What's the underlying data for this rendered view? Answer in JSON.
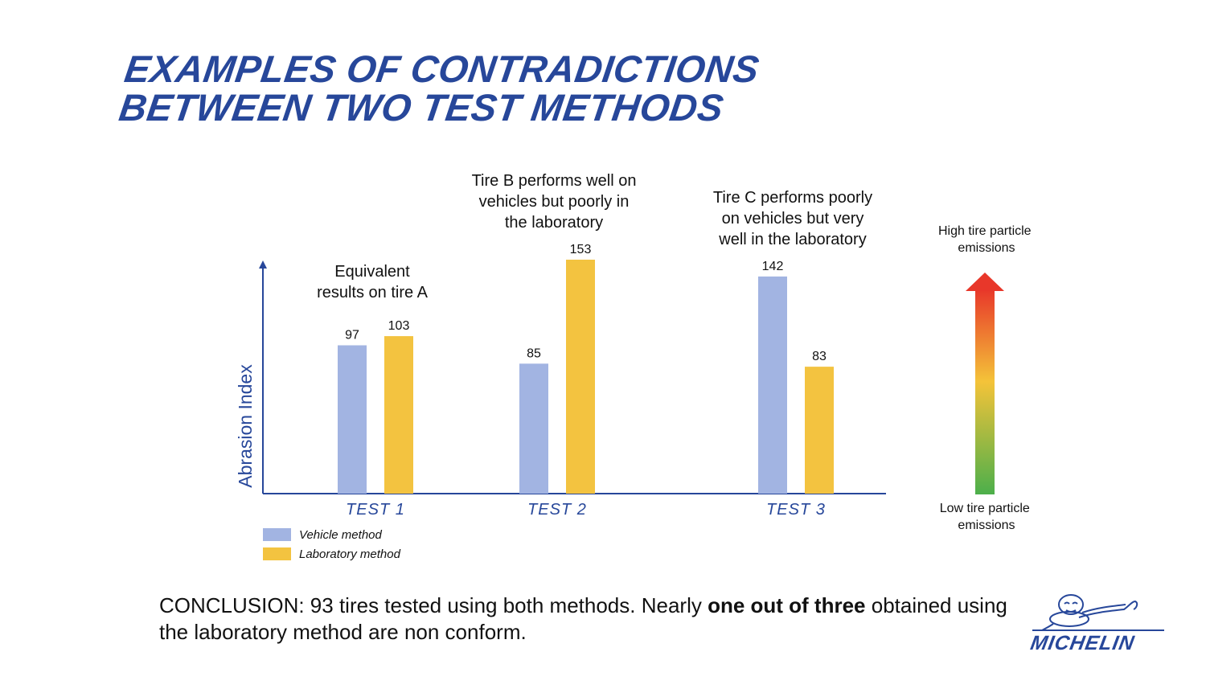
{
  "title": {
    "line1": "EXAMPLES OF CONTRADICTIONS",
    "line2": "BETWEEN TWO TEST METHODS"
  },
  "chart_data": {
    "type": "bar",
    "categories": [
      "TEST 1",
      "TEST 2",
      "TEST 3"
    ],
    "series": [
      {
        "name": "Vehicle method",
        "color": "#a2b4e2",
        "values": [
          97,
          85,
          142
        ]
      },
      {
        "name": "Laboratory method",
        "color": "#f3c340",
        "values": [
          103,
          153,
          83
        ]
      }
    ],
    "ylabel": "Abrasion Index",
    "ylim": [
      0,
      153
    ],
    "grid": false,
    "legend_position": "bottom-left",
    "annotations": [
      {
        "category": "TEST 1",
        "lines": [
          "Equivalent",
          "results on tire A"
        ]
      },
      {
        "category": "TEST 2",
        "lines": [
          "Tire B performs well on",
          "vehicles but poorly in",
          "the laboratory"
        ]
      },
      {
        "category": "TEST 3",
        "lines": [
          "Tire C performs poorly",
          "on vehicles but very",
          "well in the laboratory"
        ]
      }
    ],
    "scale": {
      "top_label": [
        "High tire particle",
        "emissions"
      ],
      "bottom_label": [
        "Low tire particle",
        "emissions"
      ],
      "colors": [
        "#e8372a",
        "#f4c339",
        "#4caf4b"
      ]
    }
  },
  "conclusion": {
    "prefix": "CONCLUSION: 93 tires tested using both methods. Nearly ",
    "bold": "one out of three",
    "suffix": " obtained using the laboratory method are non conform."
  },
  "brand": {
    "name": "MICHELIN",
    "color": "#27479a"
  }
}
